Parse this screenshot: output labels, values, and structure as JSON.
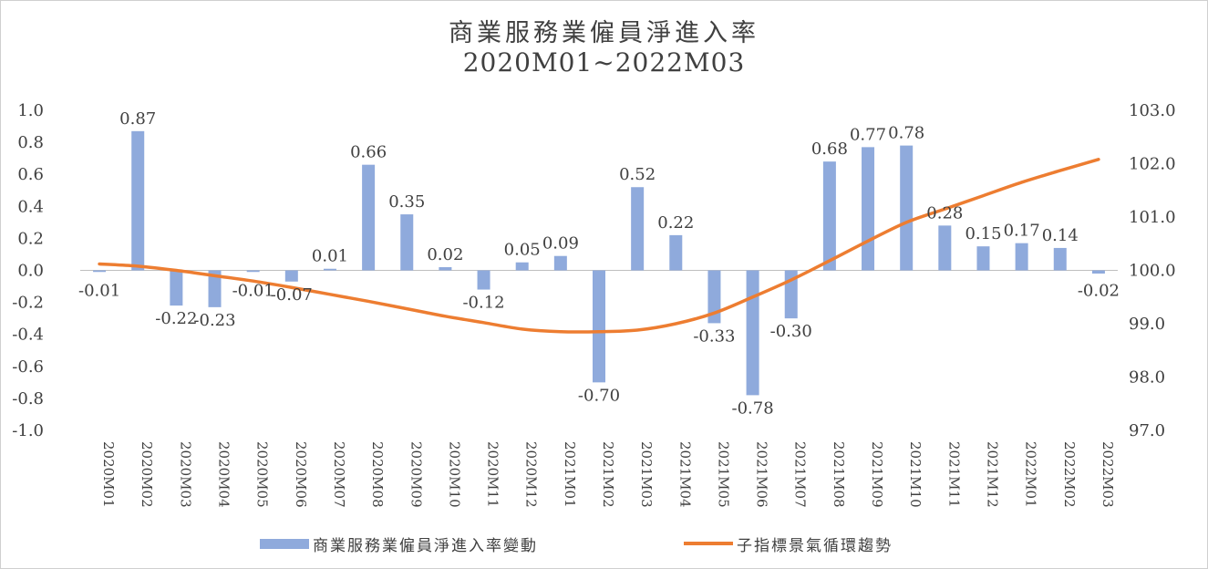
{
  "chart_data": {
    "type": "bar+line",
    "title": "商業服務業僱員淨進入率",
    "subtitle": "2020M01~2022M03",
    "categories": [
      "2020M01",
      "2020M02",
      "2020M03",
      "2020M04",
      "2020M05",
      "2020M06",
      "2020M07",
      "2020M08",
      "2020M09",
      "2020M10",
      "2020M11",
      "2020M12",
      "2021M01",
      "2021M02",
      "2021M03",
      "2021M04",
      "2021M05",
      "2021M06",
      "2021M07",
      "2021M08",
      "2021M09",
      "2021M10",
      "2021M11",
      "2021M12",
      "2022M01",
      "2022M02",
      "2022M03"
    ],
    "series": [
      {
        "name": "商業服務業僱員淨進入率變動",
        "kind": "bar",
        "axis": "left",
        "color": "#8faadc",
        "values": [
          -0.01,
          0.87,
          -0.22,
          -0.23,
          -0.01,
          -0.07,
          0.01,
          0.66,
          0.35,
          0.02,
          -0.12,
          0.05,
          0.09,
          -0.7,
          0.52,
          0.22,
          -0.33,
          -0.78,
          -0.3,
          0.68,
          0.77,
          0.78,
          0.28,
          0.15,
          0.17,
          0.14,
          -0.02
        ],
        "labels": [
          "-0.01",
          "0.87",
          "-0.22",
          "-0.23",
          "-0.01",
          "-0.07",
          "0.01",
          "0.66",
          "0.35",
          "0.02",
          "-0.12",
          "0.05",
          "0.09",
          "-0.70",
          "0.52",
          "0.22",
          "-0.33",
          "-0.78",
          "-0.30",
          "0.68",
          "0.77",
          "0.78",
          "0.28",
          "0.15",
          "0.17",
          "0.14",
          "-0.02"
        ]
      },
      {
        "name": "子指標景氣循環趨勢",
        "kind": "line",
        "axis": "right",
        "color": "#ed7d31",
        "values": [
          100.12,
          100.08,
          100.0,
          99.9,
          99.8,
          99.68,
          99.55,
          99.42,
          99.28,
          99.14,
          99.02,
          98.9,
          98.85,
          98.85,
          98.88,
          99.0,
          99.2,
          99.5,
          99.82,
          100.18,
          100.55,
          100.9,
          101.15,
          101.4,
          101.65,
          101.87,
          102.08
        ]
      }
    ],
    "ylim_left": [
      -1.0,
      1.0
    ],
    "yticks_left": [
      "1.0",
      "0.8",
      "0.6",
      "0.4",
      "0.2",
      "0.0",
      "-0.2",
      "-0.4",
      "-0.6",
      "-0.8",
      "-1.0"
    ],
    "ylim_right": [
      97.0,
      103.0
    ],
    "yticks_right": [
      "103.0",
      "102.0",
      "101.0",
      "100.0",
      "99.0",
      "98.0",
      "97.0"
    ],
    "grid": false,
    "legend_position": "bottom"
  }
}
